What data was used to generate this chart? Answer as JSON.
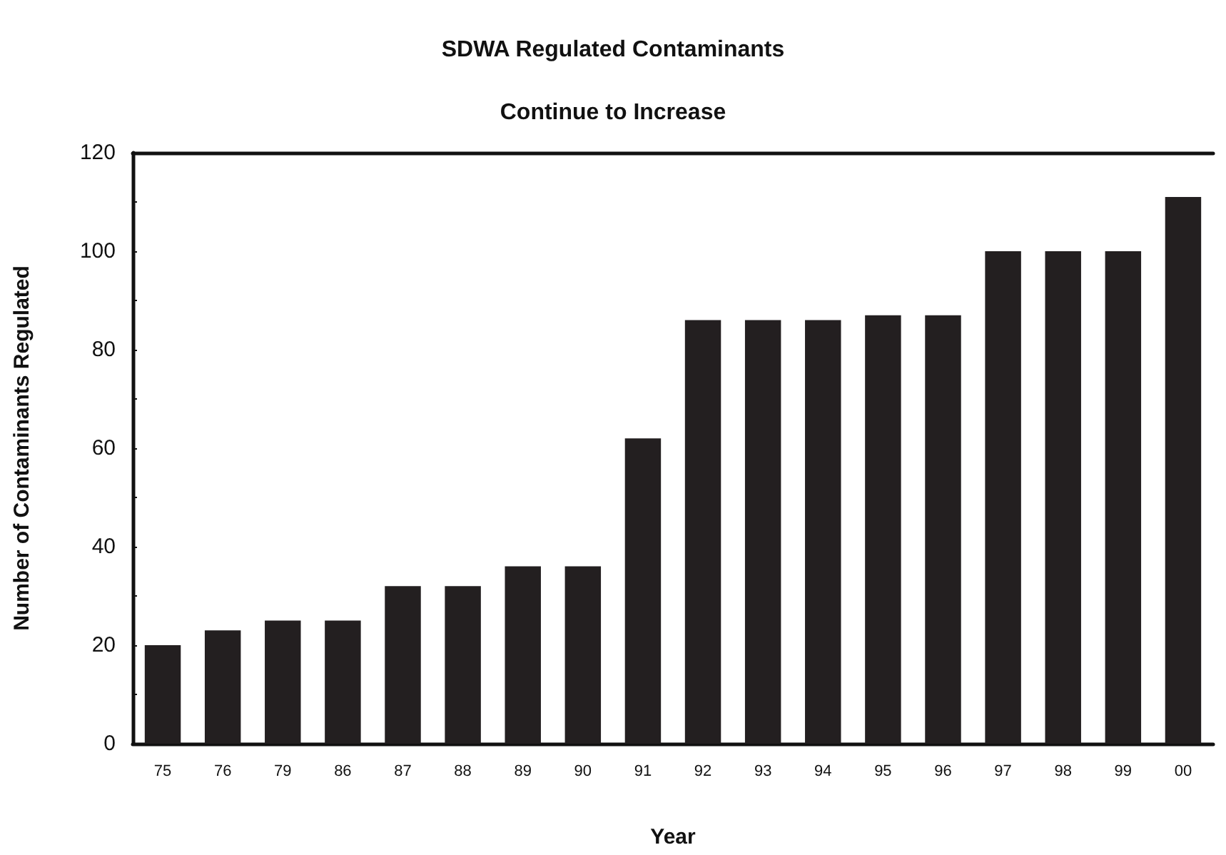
{
  "chart_data": {
    "type": "bar",
    "title": "SDWA Regulated Contaminants",
    "subtitle": "Continue to Increase",
    "xlabel": "Year",
    "ylabel": "Number of Contaminants Regulated",
    "categories": [
      "75",
      "76",
      "79",
      "86",
      "87",
      "88",
      "89",
      "90",
      "91",
      "92",
      "93",
      "94",
      "95",
      "96",
      "97",
      "98",
      "99",
      "00"
    ],
    "values": [
      20,
      23,
      25,
      25,
      32,
      32,
      36,
      36,
      62,
      86,
      86,
      86,
      87,
      87,
      100,
      100,
      100,
      111
    ],
    "color": "#231f20",
    "ylim": [
      0,
      120
    ],
    "yticks": [
      0,
      20,
      40,
      60,
      80,
      100,
      120
    ],
    "grid": false
  }
}
